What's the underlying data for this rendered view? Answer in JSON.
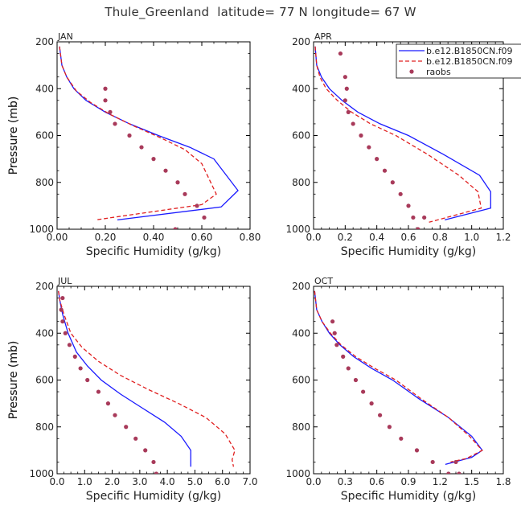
{
  "title": "Thule_Greenland  latitude= 77 N longitude= 67 W",
  "legend": {
    "entries": [
      {
        "label": "b.e12.B1850CN.f09",
        "color": "#1a1aff",
        "style": "solid"
      },
      {
        "label": "b.e12.B1850CN.f09",
        "color": "#e02020",
        "style": "dashed"
      },
      {
        "label": "raobs",
        "color": "#a83a5a",
        "style": "dot"
      }
    ]
  },
  "chart_data": [
    {
      "type": "line",
      "panel": "JAN",
      "xlabel": "Specific Humidity (g/kg)",
      "ylabel": "Pressure (mb)",
      "xlim": [
        0,
        0.8
      ],
      "ylim": [
        1000,
        200
      ],
      "xticks": [
        "0.00",
        "0.20",
        "0.40",
        "0.60",
        "0.80"
      ],
      "xtick_values": [
        0,
        0.2,
        0.4,
        0.6,
        0.8
      ],
      "yticks": [
        "200",
        "400",
        "600",
        "800",
        "1000"
      ],
      "ytick_values": [
        200,
        400,
        600,
        800,
        1000
      ],
      "series": [
        {
          "name": "b.e12.B1850CN.f09",
          "style": "solid",
          "color": "#1a1aff",
          "x": [
            0.01,
            0.015,
            0.02,
            0.04,
            0.07,
            0.12,
            0.2,
            0.3,
            0.42,
            0.55,
            0.65,
            0.75,
            0.68,
            0.25
          ],
          "y": [
            220,
            260,
            300,
            350,
            400,
            450,
            500,
            550,
            600,
            650,
            700,
            835,
            905,
            960
          ]
        },
        {
          "name": "b.e12.B1850CN.f09",
          "style": "dashed",
          "color": "#e02020",
          "x": [
            0.01,
            0.015,
            0.02,
            0.04,
            0.08,
            0.14,
            0.22,
            0.32,
            0.43,
            0.53,
            0.6,
            0.66,
            0.6,
            0.16
          ],
          "y": [
            220,
            260,
            300,
            350,
            410,
            460,
            510,
            560,
            610,
            660,
            720,
            850,
            895,
            960
          ]
        },
        {
          "name": "raobs",
          "style": "dot",
          "color": "#a83a5a",
          "x": [
            0.2,
            0.2,
            0.22,
            0.24,
            0.3,
            0.35,
            0.4,
            0.45,
            0.5,
            0.53,
            0.58,
            0.61,
            0.49
          ],
          "y": [
            400,
            450,
            500,
            550,
            600,
            650,
            700,
            750,
            800,
            850,
            900,
            950,
            1000
          ]
        }
      ]
    },
    {
      "type": "line",
      "panel": "APR",
      "xlabel": "Specific Humidity (g/kg)",
      "ylabel": "Pressure (mb)",
      "xlim": [
        0,
        1.2
      ],
      "ylim": [
        1000,
        200
      ],
      "xticks": [
        "0.0",
        "0.2",
        "0.4",
        "0.6",
        "0.8",
        "1.0",
        "1.2"
      ],
      "xtick_values": [
        0,
        0.2,
        0.4,
        0.6,
        0.8,
        1.0,
        1.2
      ],
      "yticks": [
        "200",
        "400",
        "600",
        "800",
        "1000"
      ],
      "ytick_values": [
        200,
        400,
        600,
        800,
        1000
      ],
      "series": [
        {
          "name": "b.e12.B1850CN.f09",
          "style": "solid",
          "color": "#1a1aff",
          "x": [
            0.01,
            0.02,
            0.05,
            0.1,
            0.18,
            0.28,
            0.42,
            0.6,
            0.82,
            1.05,
            1.12,
            1.12,
            0.83
          ],
          "y": [
            220,
            300,
            350,
            400,
            450,
            500,
            550,
            600,
            680,
            770,
            840,
            910,
            960
          ]
        },
        {
          "name": "b.e12.B1850CN.f09",
          "style": "dashed",
          "color": "#e02020",
          "x": [
            0.01,
            0.02,
            0.04,
            0.08,
            0.15,
            0.24,
            0.36,
            0.52,
            0.72,
            0.92,
            1.04,
            1.06,
            0.73
          ],
          "y": [
            220,
            300,
            350,
            400,
            450,
            500,
            550,
            600,
            680,
            770,
            840,
            910,
            970
          ]
        },
        {
          "name": "raobs",
          "style": "dot",
          "color": "#a83a5a",
          "x": [
            0.17,
            0.2,
            0.21,
            0.2,
            0.22,
            0.25,
            0.3,
            0.35,
            0.4,
            0.45,
            0.5,
            0.55,
            0.6,
            0.63,
            0.66,
            0.7,
            0.66
          ],
          "y": [
            250,
            350,
            400,
            450,
            500,
            550,
            600,
            650,
            700,
            750,
            800,
            850,
            900,
            950,
            1000,
            950,
            1000
          ]
        }
      ]
    },
    {
      "type": "line",
      "panel": "JUL",
      "xlabel": "Specific Humidity (g/kg)",
      "ylabel": "Pressure (mb)",
      "xlim": [
        0,
        7.0
      ],
      "ylim": [
        1000,
        200
      ],
      "xticks": [
        "0.0",
        "1.0",
        "2.0",
        "3.0",
        "4.0",
        "5.0",
        "6.0",
        "7.0"
      ],
      "xtick_values": [
        0,
        1,
        2,
        3,
        4,
        5,
        6,
        7
      ],
      "yticks": [
        "200",
        "400",
        "600",
        "800",
        "1000"
      ],
      "ytick_values": [
        200,
        400,
        600,
        800,
        1000
      ],
      "series": [
        {
          "name": "b.e12.B1850CN.f09",
          "style": "solid",
          "color": "#1a1aff",
          "x": [
            0.05,
            0.1,
            0.2,
            0.4,
            0.7,
            1.1,
            1.6,
            2.3,
            3.1,
            3.9,
            4.5,
            4.85,
            4.85
          ],
          "y": [
            220,
            260,
            320,
            400,
            480,
            540,
            600,
            660,
            720,
            780,
            840,
            900,
            970
          ]
        },
        {
          "name": "b.e12.B1850CN.f09",
          "style": "dashed",
          "color": "#e02020",
          "x": [
            0.05,
            0.1,
            0.25,
            0.5,
            0.9,
            1.5,
            2.3,
            3.3,
            4.4,
            5.4,
            6.1,
            6.45,
            6.35,
            6.4
          ],
          "y": [
            220,
            260,
            320,
            400,
            460,
            520,
            580,
            640,
            700,
            760,
            830,
            900,
            940,
            970
          ]
        },
        {
          "name": "raobs",
          "style": "dot",
          "color": "#a83a5a",
          "x": [
            0.2,
            0.15,
            0.2,
            0.3,
            0.45,
            0.65,
            0.85,
            1.1,
            1.5,
            1.85,
            2.1,
            2.5,
            2.85,
            3.2,
            3.5,
            3.6
          ],
          "y": [
            250,
            300,
            350,
            400,
            450,
            500,
            550,
            600,
            650,
            700,
            750,
            800,
            850,
            900,
            950,
            1000
          ]
        }
      ]
    },
    {
      "type": "line",
      "panel": "OCT",
      "xlabel": "Specific Humidity (g/kg)",
      "ylabel": "Pressure (mb)",
      "xlim": [
        0,
        1.8
      ],
      "ylim": [
        1000,
        200
      ],
      "xticks": [
        "0.0",
        "0.3",
        "0.6",
        "0.9",
        "1.2",
        "1.5",
        "1.8"
      ],
      "xtick_values": [
        0,
        0.3,
        0.6,
        0.9,
        1.2,
        1.5,
        1.8
      ],
      "yticks": [
        "200",
        "400",
        "600",
        "800",
        "1000"
      ],
      "ytick_values": [
        200,
        400,
        600,
        800,
        1000
      ],
      "series": [
        {
          "name": "b.e12.B1850CN.f09",
          "style": "solid",
          "color": "#1a1aff",
          "x": [
            0.01,
            0.03,
            0.08,
            0.15,
            0.25,
            0.38,
            0.55,
            0.75,
            1.0,
            1.28,
            1.5,
            1.6,
            1.5,
            1.25
          ],
          "y": [
            220,
            300,
            350,
            400,
            450,
            500,
            550,
            600,
            680,
            760,
            840,
            900,
            930,
            960
          ]
        },
        {
          "name": "b.e12.B1850CN.f09",
          "style": "dashed",
          "color": "#e02020",
          "x": [
            0.01,
            0.03,
            0.08,
            0.16,
            0.26,
            0.4,
            0.58,
            0.78,
            1.02,
            1.28,
            1.48,
            1.6,
            1.45,
            1.3
          ],
          "y": [
            220,
            300,
            350,
            400,
            450,
            500,
            550,
            600,
            680,
            760,
            840,
            900,
            935,
            950
          ]
        },
        {
          "name": "raobs",
          "style": "dot",
          "color": "#a83a5a",
          "x": [
            0.18,
            0.2,
            0.22,
            0.28,
            0.33,
            0.4,
            0.47,
            0.55,
            0.63,
            0.72,
            0.83,
            0.98,
            1.13,
            1.28,
            1.35,
            1.38
          ],
          "y": [
            350,
            400,
            450,
            500,
            550,
            600,
            650,
            700,
            750,
            800,
            850,
            900,
            950,
            1000,
            950,
            1000
          ]
        }
      ]
    }
  ]
}
